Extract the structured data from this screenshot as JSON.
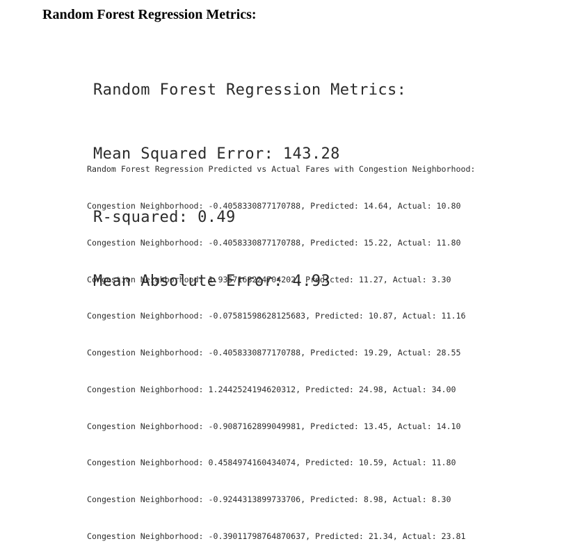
{
  "heading": "Random Forest Regression Metrics:",
  "metrics": {
    "title": "Random Forest Regression Metrics:",
    "mse": "Mean Squared Error: 143.28",
    "r2": "R-squared: 0.49",
    "mae": "Mean Absolute Error: 4.93"
  },
  "console": {
    "header": "Random Forest Regression Predicted vs Actual Fares with Congestion Neighborhood:",
    "rows": [
      "Congestion Neighborhood: -0.4058330877170788, Predicted: 14.64, Actual: 10.80",
      "Congestion Neighborhood: -0.4058330877170788, Predicted: 15.22, Actual: 11.80",
      "Congestion Neighborhood: 1.9357168224704202, Predicted: 11.27, Actual: 3.30",
      "Congestion Neighborhood: -0.07581598628125683, Predicted: 10.87, Actual: 11.16",
      "Congestion Neighborhood: -0.4058330877170788, Predicted: 19.29, Actual: 28.55",
      "Congestion Neighborhood: 1.2442524194620312, Predicted: 24.98, Actual: 34.00",
      "Congestion Neighborhood: -0.9087162899049981, Predicted: 13.45, Actual: 14.10",
      "Congestion Neighborhood: 0.4584974160434074, Predicted: 10.59, Actual: 11.80",
      "Congestion Neighborhood: -0.9244313899733706, Predicted: 8.98, Actual: 8.30",
      "Congestion Neighborhood: -0.39011798764870637, Predicted: 21.34, Actual: 23.81"
    ]
  }
}
